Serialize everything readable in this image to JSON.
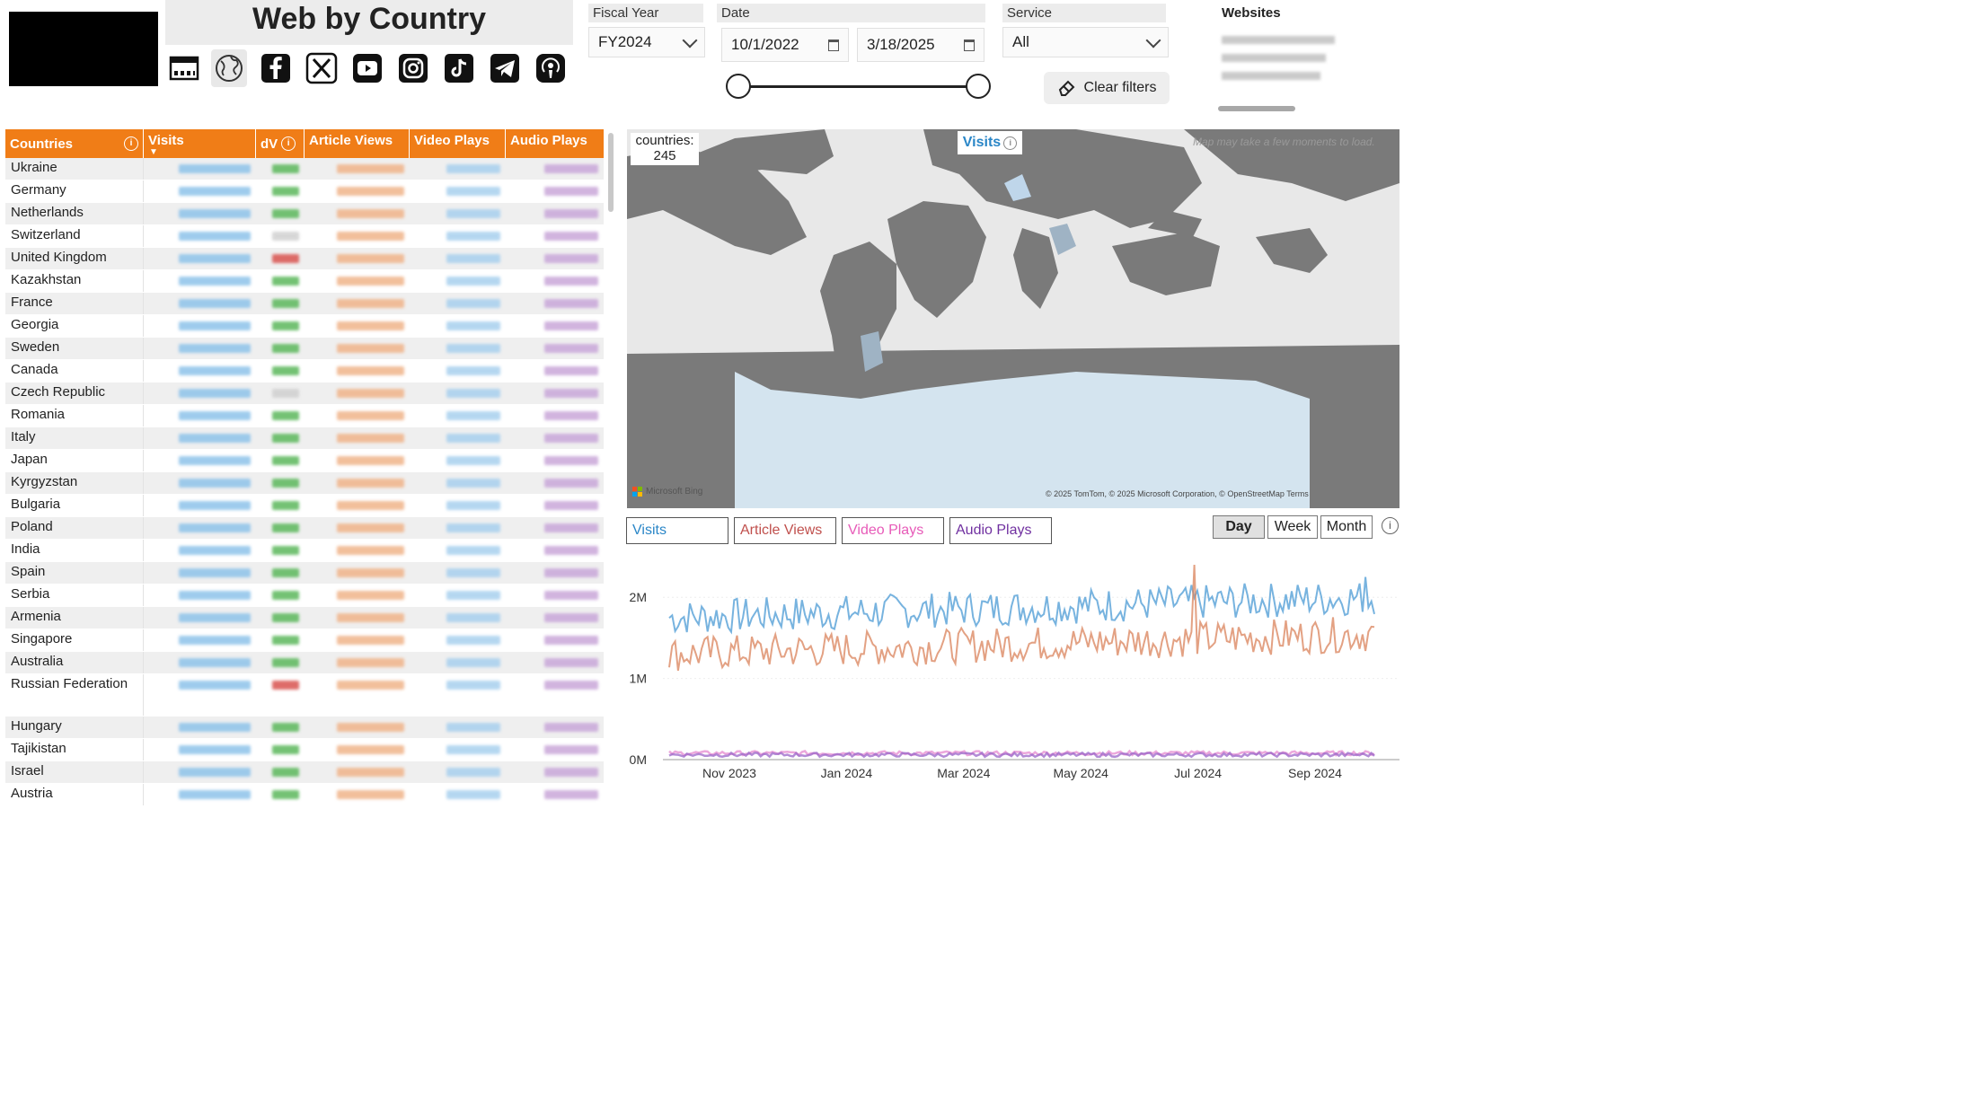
{
  "header": {
    "title": "Web by Country",
    "icons": [
      "dashboard-icon",
      "globe-icon",
      "facebook-icon",
      "x-icon",
      "youtube-icon",
      "instagram-icon",
      "tiktok-icon",
      "telegram-icon",
      "podcast-icon"
    ]
  },
  "filters": {
    "fiscal_year_label": "Fiscal Year",
    "fiscal_year_value": "FY2024",
    "date_label": "Date",
    "date_start": "10/1/2022",
    "date_end": "3/18/2025",
    "service_label": "Service",
    "service_value": "All",
    "clear_label": "Clear filters",
    "websites_label": "Websites"
  },
  "table": {
    "columns": [
      "Countries",
      "Visits",
      "dV",
      "Article Views",
      "Video Plays",
      "Audio Plays"
    ],
    "rows": [
      {
        "country": "Ukraine",
        "dv": "pos"
      },
      {
        "country": "Germany",
        "dv": "pos"
      },
      {
        "country": "Netherlands",
        "dv": "pos"
      },
      {
        "country": "Switzerland",
        "dv": "neutral"
      },
      {
        "country": "United Kingdom",
        "dv": "neg"
      },
      {
        "country": "Kazakhstan",
        "dv": "pos"
      },
      {
        "country": "France",
        "dv": "pos"
      },
      {
        "country": "Georgia",
        "dv": "pos"
      },
      {
        "country": "Sweden",
        "dv": "pos"
      },
      {
        "country": "Canada",
        "dv": "pos"
      },
      {
        "country": "Czech Republic",
        "dv": "neutral"
      },
      {
        "country": "Romania",
        "dv": "pos"
      },
      {
        "country": "Italy",
        "dv": "pos"
      },
      {
        "country": "Japan",
        "dv": "pos"
      },
      {
        "country": "Kyrgyzstan",
        "dv": "pos"
      },
      {
        "country": "Bulgaria",
        "dv": "pos"
      },
      {
        "country": "Poland",
        "dv": "pos"
      },
      {
        "country": "India",
        "dv": "pos"
      },
      {
        "country": "Spain",
        "dv": "pos"
      },
      {
        "country": "Serbia",
        "dv": "pos"
      },
      {
        "country": "Armenia",
        "dv": "pos"
      },
      {
        "country": "Singapore",
        "dv": "pos"
      },
      {
        "country": "Australia",
        "dv": "pos"
      },
      {
        "country": "Russian Federation",
        "dv": "neg"
      },
      {
        "country": "Hungary",
        "dv": "pos"
      },
      {
        "country": "Tajikistan",
        "dv": "pos"
      },
      {
        "country": "Israel",
        "dv": "pos"
      },
      {
        "country": "Austria",
        "dv": "pos"
      }
    ]
  },
  "map": {
    "countries_label": "countries:",
    "countries_count": "245",
    "measure_label": "Visits",
    "note": "Map may take a few moments to load.",
    "attribution_left": "Microsoft Bing",
    "attribution_right": "© 2025 TomTom, © 2025 Microsoft Corporation, © OpenStreetMap  Terms"
  },
  "chart_controls": {
    "metrics": [
      "Visits",
      "Article Views",
      "Video Plays",
      "Audio Plays"
    ],
    "metric_colors": [
      "#2a86c7",
      "#c0504d",
      "#e75ab8",
      "#7030a0"
    ],
    "periods": [
      "Day",
      "Week",
      "Month"
    ],
    "selected_period": "Day"
  },
  "chart_data": {
    "type": "line",
    "x_ticks": [
      "Nov 2023",
      "Jan 2024",
      "Mar 2024",
      "May 2024",
      "Jul 2024",
      "Sep 2024"
    ],
    "y_ticks": [
      "0M",
      "1M",
      "2M"
    ],
    "ylim": [
      0,
      2500000
    ],
    "series": [
      {
        "name": "Visits",
        "color": "#4a9ad4",
        "approx_level": 1750000
      },
      {
        "name": "Article Views",
        "color": "#d9825a",
        "approx_level": 1300000
      },
      {
        "name": "Video Plays",
        "color": "#e58ad0",
        "approx_level": 80000
      },
      {
        "name": "Audio Plays",
        "color": "#9a66c8",
        "approx_level": 60000
      }
    ]
  }
}
